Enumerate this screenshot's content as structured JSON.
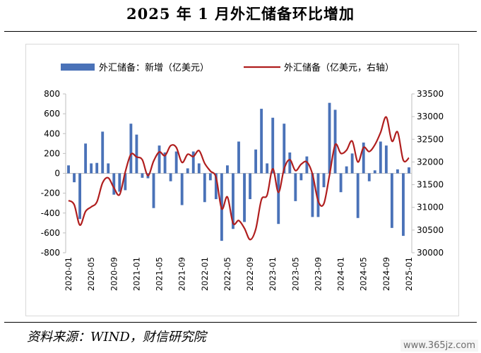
{
  "title": "2025 年 1 月外汇储备环比增加",
  "source": "资料来源：WIND，财信研究院",
  "watermark": "www.365jz.com",
  "colors": {
    "bar": "#4a72b8",
    "line": "#b01e1e",
    "axis": "#d9d9d9"
  },
  "chart_data": {
    "type": "bar",
    "legend_position": "top",
    "grid": false,
    "x": [
      "2020-01",
      "2020-02",
      "2020-03",
      "2020-04",
      "2020-05",
      "2020-06",
      "2020-07",
      "2020-08",
      "2020-09",
      "2020-10",
      "2020-11",
      "2020-12",
      "2021-01",
      "2021-02",
      "2021-03",
      "2021-04",
      "2021-05",
      "2021-06",
      "2021-07",
      "2021-08",
      "2021-09",
      "2021-10",
      "2021-11",
      "2021-12",
      "2022-01",
      "2022-02",
      "2022-03",
      "2022-04",
      "2022-05",
      "2022-06",
      "2022-07",
      "2022-08",
      "2022-09",
      "2022-10",
      "2022-11",
      "2022-12",
      "2023-01",
      "2023-02",
      "2023-03",
      "2023-04",
      "2023-05",
      "2023-06",
      "2023-07",
      "2023-08",
      "2023-09",
      "2023-10",
      "2023-11",
      "2023-12",
      "2024-01",
      "2024-02",
      "2024-03",
      "2024-04",
      "2024-05",
      "2024-06",
      "2024-07",
      "2024-08",
      "2024-09",
      "2024-10",
      "2024-11",
      "2024-12",
      "2025-01"
    ],
    "x_tick_labels": [
      "2020-01",
      "2020-05",
      "2020-09",
      "2021-01",
      "2021-05",
      "2021-09",
      "2022-01",
      "2022-05",
      "2022-09",
      "2023-01",
      "2023-05",
      "2023-09",
      "2024-01",
      "2024-05",
      "2024-09",
      "2025-01"
    ],
    "y_left": {
      "ticks": [
        -800,
        -600,
        -400,
        -200,
        0,
        200,
        400,
        600,
        800
      ],
      "ylim": [
        -800,
        800
      ]
    },
    "y_right": {
      "ticks": [
        30000,
        30500,
        31000,
        31500,
        32000,
        32500,
        33000,
        33500
      ],
      "ylim": [
        30000,
        33500
      ]
    },
    "series": [
      {
        "name": "外汇储备：新增（亿美元）",
        "type": "bar",
        "axis": "left",
        "values": [
          80,
          -90,
          -460,
          300,
          100,
          105,
          420,
          100,
          -215,
          -185,
          -170,
          500,
          390,
          -45,
          -50,
          -350,
          280,
          210,
          -80,
          220,
          -320,
          50,
          220,
          100,
          -290,
          -70,
          -260,
          -680,
          80,
          -560,
          320,
          -490,
          -260,
          240,
          650,
          100,
          560,
          -510,
          500,
          210,
          -280,
          -70,
          170,
          -440,
          -440,
          -140,
          710,
          640,
          -190,
          70,
          200,
          -450,
          310,
          -80,
          30,
          320,
          280,
          -550,
          40,
          -630,
          60
        ]
      },
      {
        "name": "外汇储备（亿美元，右轴）",
        "type": "line",
        "axis": "right",
        "values": [
          31150,
          31060,
          30610,
          30910,
          31010,
          31120,
          31540,
          31650,
          31430,
          31280,
          31780,
          32170,
          32110,
          32050,
          31700,
          32020,
          32220,
          32140,
          32360,
          32320,
          31990,
          32170,
          32120,
          32250,
          31970,
          31800,
          31660,
          30970,
          31230,
          30650,
          30710,
          30540,
          30290,
          30520,
          31170,
          31270,
          31850,
          31330,
          31850,
          32050,
          31810,
          31950,
          32000,
          31730,
          31140,
          31080,
          31710,
          32380,
          32190,
          32260,
          32460,
          32000,
          32320,
          32230,
          32380,
          32650,
          32990,
          32460,
          32660,
          32040,
          32090
        ]
      }
    ]
  }
}
